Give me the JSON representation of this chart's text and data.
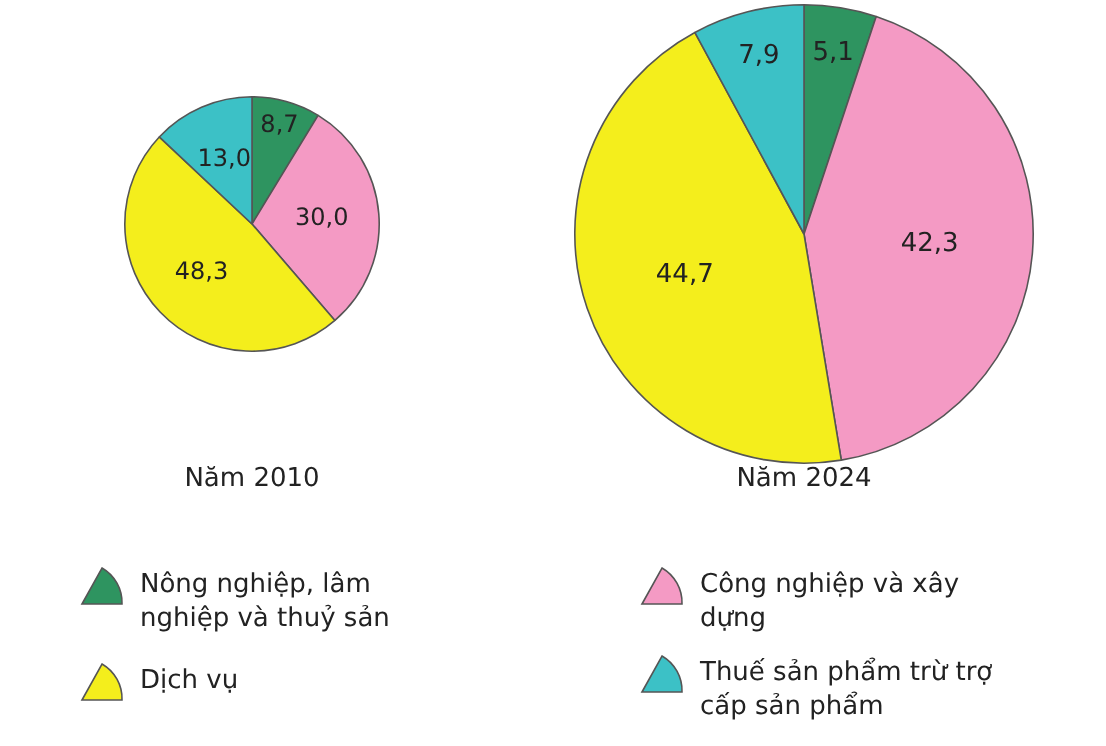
{
  "chart_data": [
    {
      "type": "pie",
      "title": "Năm 2010",
      "categories": [
        "Nông nghiệp, lâm nghiệp và thuỷ sản",
        "Công nghiệp và xây dựng",
        "Dịch vụ",
        "Thuế sản phẩm trừ trợ cấp sản phẩm"
      ],
      "values": [
        8.7,
        30.0,
        48.3,
        13.0
      ],
      "value_labels": [
        "8,7",
        "30,0",
        "48,3",
        "13,0"
      ],
      "colors": [
        "#2e9460",
        "#f49ac4",
        "#f4ee1c",
        "#3cc1c6"
      ],
      "legend": "bottom"
    },
    {
      "type": "pie",
      "title": "Năm 2024",
      "values": [
        5.1,
        42.3,
        44.7,
        7.9
      ],
      "value_labels": [
        "5,1",
        "42,3",
        "44,7",
        "7,9"
      ],
      "colors": [
        "#2e9460",
        "#f49ac4",
        "#f4ee1c",
        "#3cc1c6"
      ]
    }
  ]
}
